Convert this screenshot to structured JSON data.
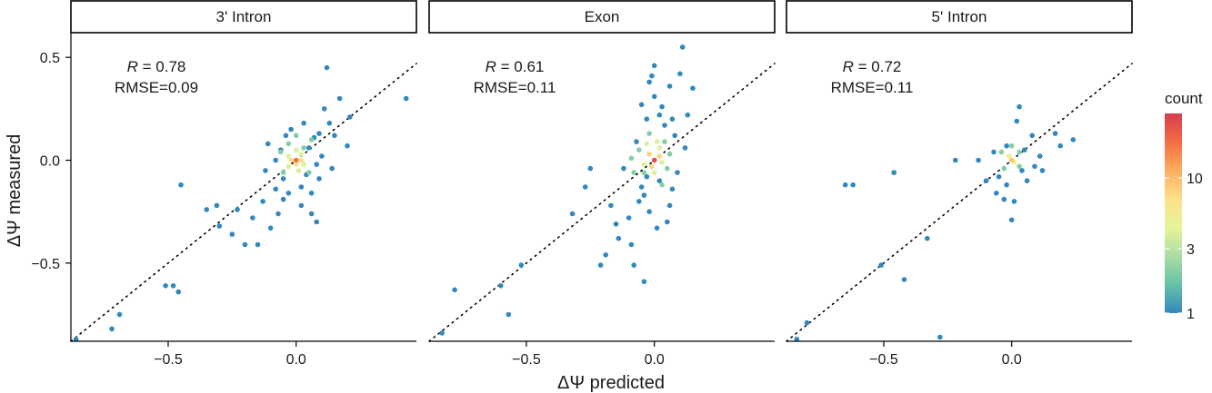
{
  "chart_data": {
    "type": "scatter",
    "xlabel": "ΔΨ predicted",
    "ylabel": "ΔΨ measured",
    "xlim": [
      -0.88,
      0.47
    ],
    "ylim": [
      -0.88,
      0.62
    ],
    "x_ticks": [
      -0.5,
      0.0
    ],
    "x_tick_labels": [
      "−0.5",
      "0.0"
    ],
    "y_ticks": [
      0.5,
      0.0,
      -0.5
    ],
    "y_tick_labels": [
      "0.5",
      "0.0",
      "−0.5"
    ],
    "reference_line": "y = x (dotted)",
    "legend": {
      "title": "count",
      "position": "right",
      "scale": "log",
      "min": 1,
      "max": 30,
      "ticks": [
        1,
        3,
        10
      ],
      "tick_labels": [
        "1",
        "3",
        "10"
      ],
      "colors": [
        "#3288bd",
        "#66c2a5",
        "#abdda4",
        "#e6f598",
        "#fee08b",
        "#fdae61",
        "#f46d43",
        "#d53e4f"
      ]
    },
    "panels": [
      {
        "strip_label": "3' Intron",
        "r_label": "R",
        "r_value": " = 0.78",
        "rmse_label": "RMSE=0.09",
        "points": [
          [
            -0.86,
            -0.87,
            1
          ],
          [
            -0.72,
            -0.82,
            1
          ],
          [
            -0.69,
            -0.75,
            1
          ],
          [
            -0.51,
            -0.61,
            1
          ],
          [
            -0.48,
            -0.61,
            1
          ],
          [
            -0.46,
            -0.64,
            1
          ],
          [
            -0.45,
            -0.12,
            1
          ],
          [
            -0.35,
            -0.24,
            1
          ],
          [
            -0.31,
            -0.22,
            1
          ],
          [
            -0.3,
            -0.32,
            1
          ],
          [
            -0.25,
            -0.36,
            1
          ],
          [
            -0.23,
            -0.24,
            1
          ],
          [
            -0.2,
            -0.41,
            1
          ],
          [
            -0.17,
            -0.28,
            1
          ],
          [
            -0.15,
            -0.41,
            1
          ],
          [
            -0.13,
            -0.2,
            1
          ],
          [
            -0.12,
            -0.05,
            1
          ],
          [
            -0.1,
            -0.33,
            1
          ],
          [
            -0.08,
            0.0,
            1
          ],
          [
            -0.08,
            -0.14,
            1
          ],
          [
            -0.07,
            -0.26,
            1
          ],
          [
            -0.06,
            0.05,
            1
          ],
          [
            -0.05,
            -0.09,
            1
          ],
          [
            -0.05,
            -0.19,
            1
          ],
          [
            -0.04,
            0.12,
            1
          ],
          [
            -0.03,
            -0.16,
            1
          ],
          [
            -0.02,
            0.15,
            1
          ],
          [
            0.02,
            -0.13,
            1
          ],
          [
            0.02,
            -0.22,
            1
          ],
          [
            0.03,
            0.18,
            1
          ],
          [
            0.04,
            -0.07,
            1
          ],
          [
            0.05,
            0.06,
            1
          ],
          [
            0.06,
            -0.16,
            1
          ],
          [
            0.06,
            -0.26,
            1
          ],
          [
            0.07,
            0.11,
            1
          ],
          [
            0.08,
            -0.02,
            1
          ],
          [
            0.08,
            -0.3,
            1
          ],
          [
            0.09,
            0.13,
            1
          ],
          [
            0.1,
            0.02,
            1
          ],
          [
            0.11,
            0.25,
            1
          ],
          [
            0.12,
            0.45,
            1
          ],
          [
            0.13,
            0.18,
            1
          ],
          [
            0.15,
            0.12,
            1
          ],
          [
            0.17,
            0.3,
            1
          ],
          [
            0.2,
            0.07,
            1
          ],
          [
            0.21,
            0.21,
            1
          ],
          [
            0.43,
            0.3,
            1
          ],
          [
            0.09,
            -0.09,
            1
          ],
          [
            -0.11,
            0.08,
            1
          ],
          [
            0.14,
            -0.04,
            1
          ],
          [
            -0.06,
            0.04,
            2
          ],
          [
            -0.03,
            0.08,
            2
          ],
          [
            0.03,
            0.06,
            2
          ],
          [
            0.05,
            -0.06,
            2
          ],
          [
            -0.05,
            -0.06,
            2
          ],
          [
            0.0,
            0.12,
            2
          ],
          [
            0.06,
            0.1,
            2
          ],
          [
            -0.03,
            0.02,
            4
          ],
          [
            0.02,
            0.03,
            4
          ],
          [
            0.03,
            -0.02,
            4
          ],
          [
            -0.03,
            -0.03,
            4
          ],
          [
            0.01,
            -0.05,
            4
          ],
          [
            0.0,
            0.05,
            4
          ],
          [
            -0.02,
            0.0,
            7
          ],
          [
            0.02,
            0.0,
            7
          ],
          [
            0.0,
            -0.02,
            7
          ],
          [
            0.0,
            0.0,
            18
          ]
        ]
      },
      {
        "strip_label": "Exon",
        "r_label": "R",
        "r_value": " = 0.61",
        "rmse_label": "RMSE=0.11",
        "points": [
          [
            -0.83,
            -0.84,
            1
          ],
          [
            -0.78,
            -0.63,
            1
          ],
          [
            -0.6,
            -0.61,
            1
          ],
          [
            -0.57,
            -0.75,
            1
          ],
          [
            -0.52,
            -0.51,
            1
          ],
          [
            -0.32,
            -0.26,
            1
          ],
          [
            -0.27,
            -0.13,
            1
          ],
          [
            -0.25,
            -0.04,
            1
          ],
          [
            -0.21,
            -0.51,
            1
          ],
          [
            -0.19,
            -0.46,
            1
          ],
          [
            -0.17,
            -0.22,
            1
          ],
          [
            -0.15,
            -0.31,
            1
          ],
          [
            -0.14,
            -0.38,
            1
          ],
          [
            -0.12,
            -0.04,
            1
          ],
          [
            -0.1,
            -0.28,
            1
          ],
          [
            -0.09,
            -0.41,
            1
          ],
          [
            -0.08,
            -0.51,
            1
          ],
          [
            -0.06,
            -0.2,
            1
          ],
          [
            -0.05,
            0.27,
            1
          ],
          [
            -0.05,
            -0.13,
            1
          ],
          [
            -0.04,
            -0.17,
            1
          ],
          [
            -0.04,
            -0.59,
            1
          ],
          [
            -0.03,
            0.2,
            1
          ],
          [
            -0.03,
            -0.08,
            1
          ],
          [
            -0.02,
            -0.25,
            1
          ],
          [
            0.0,
            0.46,
            1
          ],
          [
            0.0,
            0.31,
            1
          ],
          [
            0.01,
            -0.33,
            1
          ],
          [
            0.02,
            0.22,
            1
          ],
          [
            0.02,
            -0.1,
            1
          ],
          [
            0.03,
            0.26,
            1
          ],
          [
            0.04,
            0.17,
            1
          ],
          [
            0.05,
            -0.3,
            1
          ],
          [
            0.06,
            0.36,
            1
          ],
          [
            0.07,
            0.2,
            1
          ],
          [
            0.07,
            -0.14,
            1
          ],
          [
            0.08,
            0.12,
            1
          ],
          [
            0.1,
            0.42,
            1
          ],
          [
            0.11,
            0.55,
            1
          ],
          [
            0.12,
            0.06,
            1
          ],
          [
            0.15,
            0.35,
            1
          ],
          [
            0.13,
            0.22,
            1
          ],
          [
            -0.02,
            0.38,
            1
          ],
          [
            -0.01,
            0.41,
            1
          ],
          [
            0.09,
            -0.06,
            1
          ],
          [
            -0.07,
            0.09,
            1
          ],
          [
            0.06,
            -0.22,
            1
          ],
          [
            -0.08,
            -0.06,
            2
          ],
          [
            -0.06,
            0.05,
            2
          ],
          [
            -0.04,
            -0.06,
            2
          ],
          [
            -0.02,
            0.13,
            2
          ],
          [
            0.04,
            0.09,
            2
          ],
          [
            0.05,
            -0.04,
            2
          ],
          [
            0.06,
            0.03,
            2
          ],
          [
            -0.09,
            0.01,
            2
          ],
          [
            0.03,
            -0.12,
            2
          ],
          [
            -0.03,
            0.08,
            4
          ],
          [
            0.02,
            0.06,
            4
          ],
          [
            -0.04,
            -0.02,
            4
          ],
          [
            0.03,
            -0.01,
            4
          ],
          [
            0.0,
            -0.06,
            4
          ],
          [
            0.01,
            0.09,
            4
          ],
          [
            -0.02,
            0.03,
            8
          ],
          [
            0.02,
            0.02,
            8
          ],
          [
            -0.01,
            -0.03,
            8
          ],
          [
            0.0,
            0.0,
            25
          ]
        ]
      },
      {
        "strip_label": "5' Intron",
        "r_label": "R",
        "r_value": " = 0.72",
        "rmse_label": "RMSE=0.11",
        "points": [
          [
            -0.84,
            -0.87,
            1
          ],
          [
            -0.8,
            -0.79,
            1
          ],
          [
            -0.65,
            -0.12,
            1
          ],
          [
            -0.62,
            -0.12,
            1
          ],
          [
            -0.51,
            -0.51,
            1
          ],
          [
            -0.46,
            -0.06,
            1
          ],
          [
            -0.42,
            -0.58,
            1
          ],
          [
            -0.33,
            -0.38,
            1
          ],
          [
            -0.28,
            -0.86,
            1
          ],
          [
            -0.22,
            0.0,
            1
          ],
          [
            -0.13,
            0.0,
            1
          ],
          [
            -0.1,
            -0.1,
            1
          ],
          [
            -0.07,
            0.04,
            1
          ],
          [
            -0.06,
            -0.16,
            1
          ],
          [
            -0.05,
            -0.08,
            1
          ],
          [
            -0.03,
            -0.19,
            1
          ],
          [
            -0.02,
            0.07,
            1
          ],
          [
            -0.02,
            -0.12,
            1
          ],
          [
            0.0,
            -0.29,
            1
          ],
          [
            0.01,
            -0.2,
            1
          ],
          [
            0.02,
            0.19,
            1
          ],
          [
            0.03,
            0.26,
            1
          ],
          [
            0.04,
            -0.05,
            1
          ],
          [
            0.05,
            0.05,
            1
          ],
          [
            0.06,
            -0.1,
            1
          ],
          [
            0.08,
            0.12,
            1
          ],
          [
            0.09,
            -0.03,
            1
          ],
          [
            0.12,
            -0.05,
            1
          ],
          [
            0.17,
            0.13,
            1
          ],
          [
            0.19,
            0.07,
            1
          ],
          [
            0.24,
            0.1,
            1
          ],
          [
            0.11,
            0.02,
            1
          ],
          [
            -0.04,
            0.04,
            2
          ],
          [
            0.03,
            0.04,
            2
          ],
          [
            -0.03,
            -0.04,
            2
          ],
          [
            0.03,
            -0.03,
            2
          ],
          [
            0.0,
            0.07,
            2
          ],
          [
            -0.01,
            0.02,
            5
          ],
          [
            0.01,
            -0.01,
            5
          ],
          [
            0.0,
            0.0,
            9
          ]
        ]
      }
    ]
  }
}
